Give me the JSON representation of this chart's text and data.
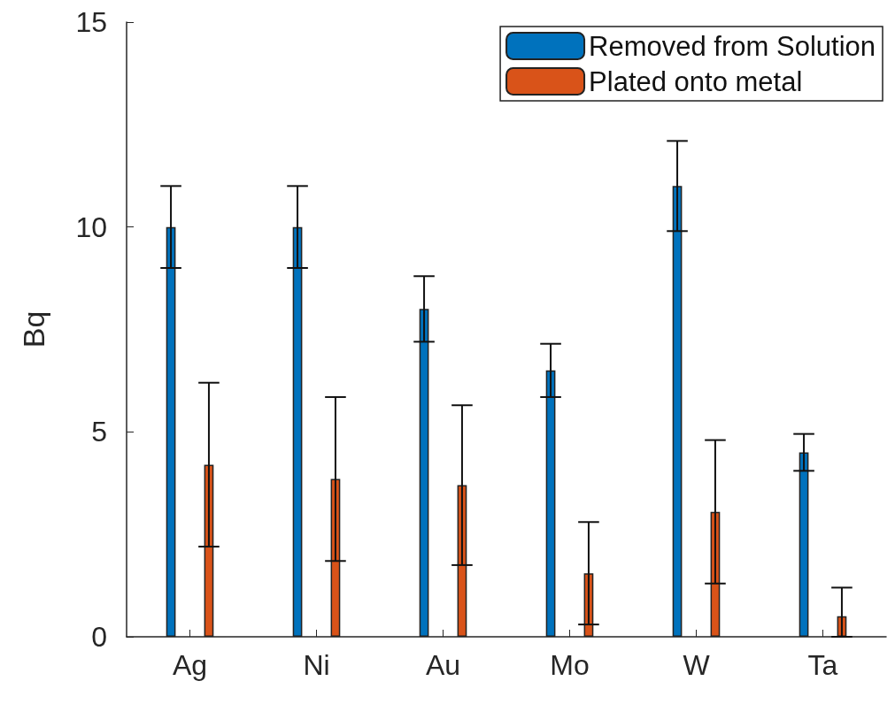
{
  "chart_data": {
    "type": "bar",
    "ylabel": "Bq",
    "categories": [
      "Ag",
      "Ni",
      "Au",
      "Mo",
      "W",
      "Ta"
    ],
    "series": [
      {
        "name": "Removed from Solution",
        "color": "#0072bd",
        "values": [
          10,
          10,
          8,
          6.5,
          11,
          4.5
        ],
        "errors": [
          1,
          1,
          0.8,
          0.65,
          1.1,
          0.45
        ]
      },
      {
        "name": "Plated onto metal",
        "color": "#d95319",
        "values": [
          4.2,
          3.85,
          3.7,
          1.55,
          3.05,
          0.5
        ],
        "errors": [
          2,
          2,
          1.95,
          1.25,
          1.75,
          [
            0,
            1.2
          ]
        ]
      }
    ],
    "ylim": [
      0,
      15
    ],
    "yticks": [
      0,
      5,
      10,
      15
    ],
    "grid": false,
    "legend": "top right"
  }
}
